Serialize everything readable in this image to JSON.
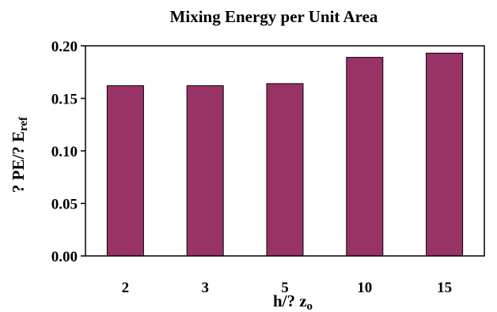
{
  "chart_data": {
    "type": "bar",
    "title": "Mixing Energy per Unit Area",
    "xlabel": {
      "main": "h/? z",
      "sub": "o"
    },
    "ylabel": {
      "main": "? PE/? E",
      "sub": "ref"
    },
    "categories": [
      "2",
      "3",
      "5",
      "10",
      "15"
    ],
    "values": [
      0.162,
      0.162,
      0.164,
      0.189,
      0.193
    ],
    "ylim": [
      0,
      0.2
    ],
    "yticks": [
      "0.00",
      "0.05",
      "0.10",
      "0.15",
      "0.20"
    ],
    "bar_color": "#993366",
    "grid": false,
    "legend": "none"
  }
}
